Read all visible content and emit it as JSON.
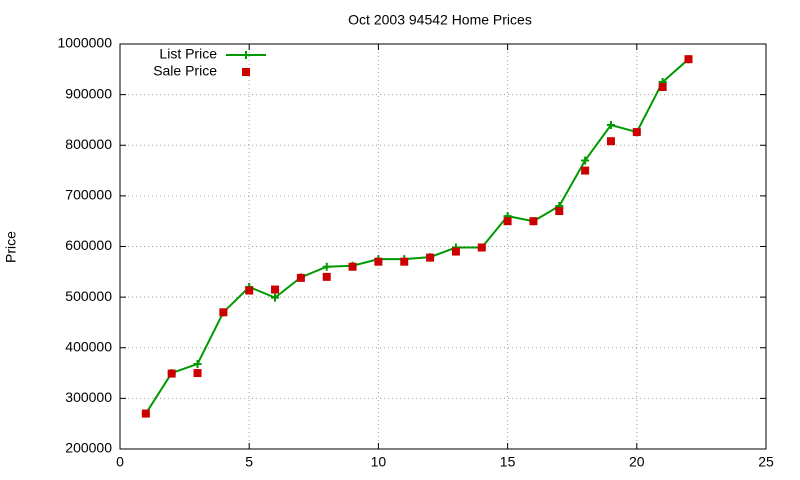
{
  "chart_data": {
    "type": "line",
    "title": "Oct 2003 94542 Home Prices",
    "y_label": "Price",
    "x": [
      1,
      2,
      3,
      4,
      5,
      6,
      7,
      8,
      9,
      10,
      11,
      12,
      13,
      14,
      15,
      16,
      17,
      18,
      19,
      20,
      21,
      22
    ],
    "series": [
      {
        "name": "List Price",
        "color": "#009900",
        "line": true,
        "marker": "plus",
        "values": [
          270000,
          350000,
          368000,
          470000,
          520000,
          499000,
          539000,
          560000,
          562000,
          575000,
          575000,
          579000,
          598000,
          598000,
          660000,
          650000,
          680000,
          770000,
          840000,
          826000,
          925000,
          970000
        ]
      },
      {
        "name": "Sale Price",
        "color": "#cc0000",
        "line": false,
        "marker": "square",
        "values": [
          270000,
          349000,
          350000,
          470000,
          513000,
          515000,
          538000,
          540000,
          560000,
          570000,
          570000,
          578000,
          590000,
          598000,
          650000,
          650000,
          670000,
          750000,
          808000,
          826000,
          915000,
          970000
        ]
      }
    ],
    "xlim": [
      0,
      25
    ],
    "xticks": [
      0,
      5,
      10,
      15,
      20,
      25
    ],
    "ylim": [
      200000,
      1000000
    ],
    "yticks": [
      200000,
      300000,
      400000,
      500000,
      600000,
      700000,
      800000,
      900000,
      1000000
    ],
    "grid": true,
    "legend": "top-left"
  }
}
